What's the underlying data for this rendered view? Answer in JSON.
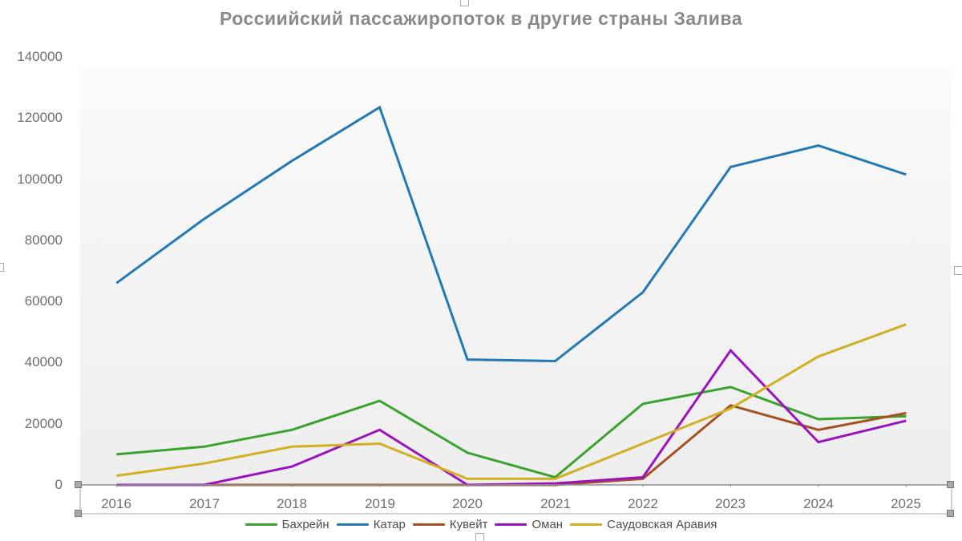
{
  "title": "Россиийский пассажиропоток в другие страны Залива",
  "chart_data": {
    "type": "line",
    "title": "Россиийский пассажиропоток в другие страны Залива",
    "categories": [
      "2016",
      "2017",
      "2018",
      "2019",
      "2020",
      "2021",
      "2022",
      "2023",
      "2024",
      "2025"
    ],
    "series": [
      {
        "name": "Бахрейн",
        "color": "#3aa32e",
        "values": [
          10000,
          12500,
          18000,
          27500,
          10500,
          2500,
          26500,
          32000,
          21500,
          22500
        ]
      },
      {
        "name": "Катар",
        "color": "#2279b5",
        "values": [
          66000,
          87000,
          106000,
          123500,
          41000,
          40500,
          63000,
          104000,
          111000,
          101500
        ]
      },
      {
        "name": "Кувейт",
        "color": "#a65122",
        "values": [
          0,
          0,
          0,
          0,
          0,
          0,
          2000,
          26000,
          18000,
          23500
        ]
      },
      {
        "name": "Оман",
        "color": "#9b13bd",
        "values": [
          0,
          0,
          6000,
          18000,
          0,
          500,
          2500,
          44000,
          14000,
          21000
        ]
      },
      {
        "name": "Саудовская Аравия",
        "color": "#d0b020",
        "values": [
          3000,
          7000,
          12500,
          13500,
          2000,
          2000,
          13500,
          25000,
          42000,
          52500
        ]
      }
    ],
    "ylim": [
      0,
      140000
    ],
    "y_ticks": [
      0,
      20000,
      40000,
      60000,
      80000,
      100000,
      120000,
      140000
    ],
    "xlabel": "",
    "ylabel": "",
    "grid": false,
    "legend_position": "bottom"
  }
}
